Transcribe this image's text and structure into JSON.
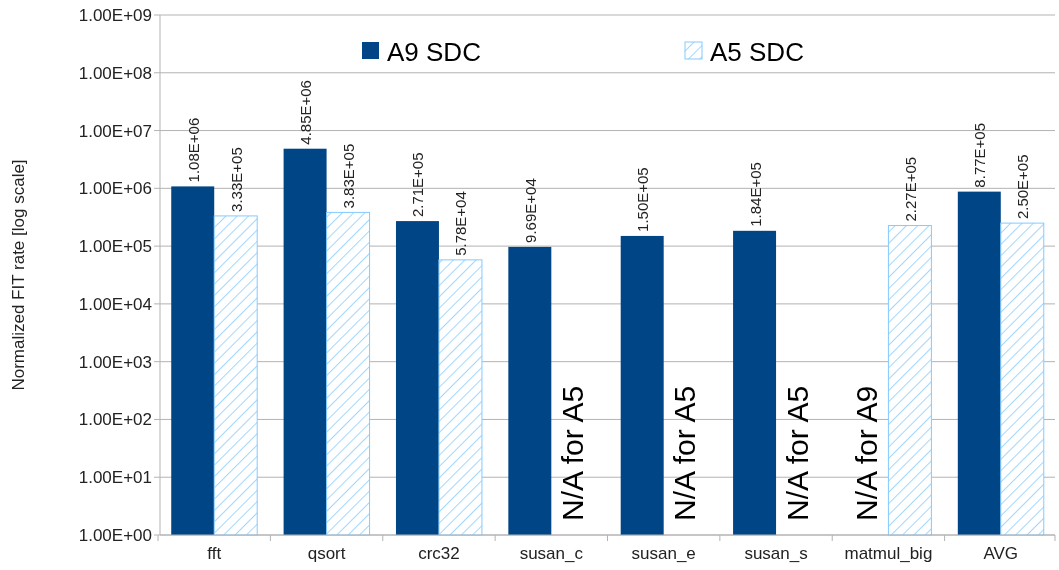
{
  "chart_data": {
    "type": "bar",
    "ylabel": "Normalized FIT rate [log scale]",
    "log": true,
    "grid": "y",
    "legend": "top",
    "categories": [
      "fft",
      "qsort",
      "crc32",
      "susan_c",
      "susan_e",
      "susan_s",
      "matmul_big",
      "AVG"
    ],
    "series": [
      {
        "name": "A9 SDC",
        "color": "#004586",
        "values": [
          1080000,
          4850000,
          271000,
          96900,
          150000,
          184000,
          null,
          877000
        ],
        "value_labels": [
          "1.08E+06",
          "4.85E+06",
          "2.71E+05",
          "9.69E+04",
          "1.50E+05",
          "1.84E+05",
          null,
          "8.77E+05"
        ]
      },
      {
        "name": "A5 SDC",
        "color": "#83caff",
        "values": [
          333000,
          383000,
          57800,
          null,
          null,
          null,
          227000,
          250000
        ],
        "value_labels": [
          "3.33E+05",
          "3.83E+05",
          "5.78E+04",
          null,
          null,
          null,
          "2.27E+05",
          "2.50E+05"
        ]
      }
    ],
    "ylim": [
      1,
      1000000000
    ],
    "yticks": [
      {
        "value": 1,
        "label": "1.00E+00"
      },
      {
        "value": 10,
        "label": "1.00E+01"
      },
      {
        "value": 100,
        "label": "1.00E+02"
      },
      {
        "value": 1000,
        "label": "1.00E+03"
      },
      {
        "value": 10000,
        "label": "1.00E+04"
      },
      {
        "value": 100000,
        "label": "1.00E+05"
      },
      {
        "value": 1000000,
        "label": "1.00E+06"
      },
      {
        "value": 10000000,
        "label": "1.00E+07"
      },
      {
        "value": 100000000,
        "label": "1.00E+08"
      },
      {
        "value": 1000000000,
        "label": "1.00E+09"
      }
    ],
    "annotations": [
      {
        "text": "N/A for A5",
        "x": "susan_c"
      },
      {
        "text": "N/A for A5",
        "x": "susan_e"
      },
      {
        "text": "N/A for A5",
        "x": "susan_s"
      },
      {
        "text": "N/A for A9",
        "x": "matmul_big"
      }
    ]
  }
}
